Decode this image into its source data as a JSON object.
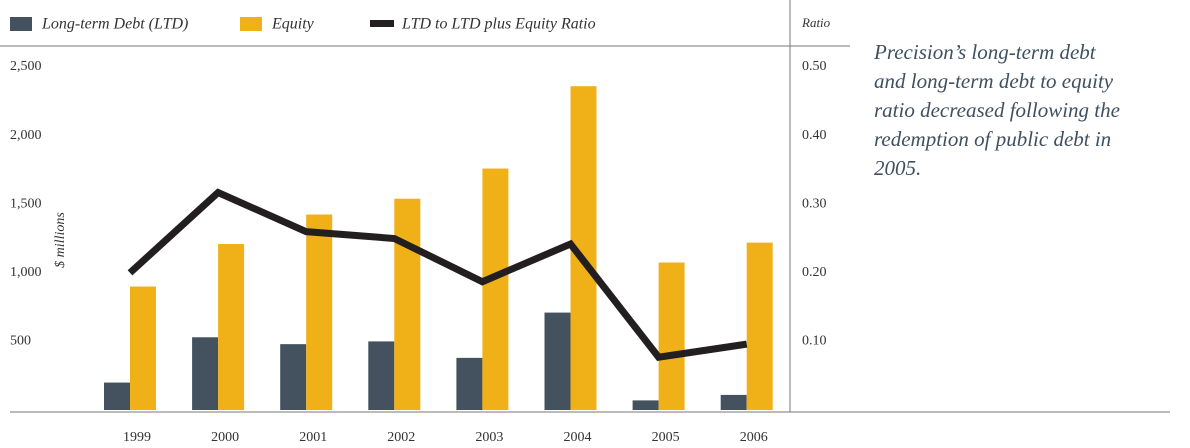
{
  "chart_data": {
    "type": "bar",
    "categories": [
      "1999",
      "2000",
      "2001",
      "2002",
      "2003",
      "2004",
      "2005",
      "2006"
    ],
    "series": [
      {
        "name": "Long-term Debt (LTD)",
        "color": "#43525e",
        "type": "bar",
        "values": [
          200,
          530,
          480,
          500,
          380,
          710,
          70,
          110
        ]
      },
      {
        "name": "Equity",
        "color": "#f0b018",
        "type": "bar",
        "values": [
          900,
          1210,
          1425,
          1540,
          1760,
          2360,
          1075,
          1220
        ]
      },
      {
        "name": "LTD to LTD plus Equity Ratio",
        "color": "#231f20",
        "type": "line",
        "axis": "y2",
        "values": [
          0.2,
          0.317,
          0.26,
          0.25,
          0.187,
          0.242,
          0.077,
          0.096
        ]
      }
    ],
    "ylabel": "$ millions",
    "y2label": "Ratio",
    "ylim": [
      0,
      2500
    ],
    "yticks": [
      {
        "value": 500,
        "label": "500"
      },
      {
        "value": 1000,
        "label": "1,000"
      },
      {
        "value": 1500,
        "label": "1,500"
      },
      {
        "value": 2000,
        "label": "2,000"
      },
      {
        "value": 2500,
        "label": "2,500"
      }
    ],
    "y2lim": [
      0,
      0.5
    ],
    "y2ticks": [
      {
        "value": 0.1,
        "label": "0.10"
      },
      {
        "value": 0.2,
        "label": "0.20"
      },
      {
        "value": 0.3,
        "label": "0.30"
      },
      {
        "value": 0.4,
        "label": "0.40"
      },
      {
        "value": 0.5,
        "label": "0.50"
      }
    ],
    "grid": false,
    "legend": "top",
    "annotation": "Precision’s long-term debt and long-term debt to equity ratio decreased following the redemption of public debt in 2005."
  }
}
